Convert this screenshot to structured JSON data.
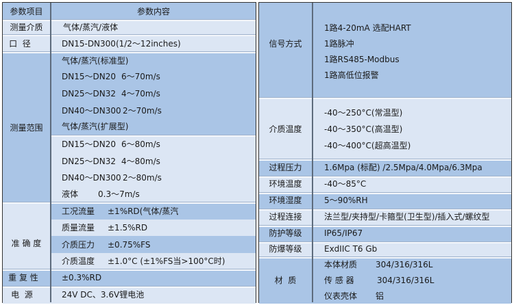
{
  "left_table": {
    "header": {
      "col1": "参数项目",
      "col2": "参数内容"
    },
    "medium": {
      "label": "测量介质",
      "value": "气体/蒸汽/液体"
    },
    "diameter": {
      "label": "口  径",
      "value": "DN15-DN300(1/2～12inches)"
    },
    "range": {
      "label": "测量范围",
      "standard_title": "气体/蒸汽(标准型)",
      "standard": [
        {
          "size": "DN15～DN20",
          "speed": "6～70m/s"
        },
        {
          "size": "DN25～DN32",
          "speed": "4～70m/s"
        },
        {
          "size": "DN40～DN300",
          "speed": "2～70m/s"
        }
      ],
      "extended_title": "气体/蒸汽(扩展型)",
      "extended": [
        {
          "size": "DN15～DN20",
          "speed": "6～80m/s"
        },
        {
          "size": "DN25～DN32",
          "speed": "4～80m/s"
        },
        {
          "size": "DN40～DN300",
          "speed": "2～80m/s"
        }
      ],
      "liquid": {
        "name": "液体",
        "speed": "0.3～7m/s"
      }
    },
    "accuracy": {
      "label": "准 确 度",
      "items": [
        {
          "name": "工况流量",
          "value": "±1%RD(气体/蒸汽"
        },
        {
          "name": "质量流量",
          "value": "±1.5%RD"
        },
        {
          "name": "介质压力",
          "value": "±0.75%FS"
        },
        {
          "name": "介质温度",
          "value": "±1.0°C (±1%FS当>100°C时)"
        }
      ]
    },
    "repeatability": {
      "label": "重 复 性",
      "value": "±0.3%RD"
    },
    "power": {
      "label": "电  源",
      "value": "24V DC、3.6V锂电池"
    }
  },
  "right_table": {
    "signal": {
      "label": "信号方式",
      "lines": [
        "1路4-20mA 选配HART",
        "1路脉冲",
        "1路RS485-Modbus",
        "1路高低位报警"
      ]
    },
    "medium_temp": {
      "label": "介质温度",
      "lines": [
        "-40～250°C(常温型)",
        "-40～350°C(高温型)",
        "-40～400°C(超高温型)"
      ]
    },
    "process_pressure": {
      "label": "过程压力",
      "value": "1.6Mpa (标配) /2.5Mpa/4.0Mpa/6.3Mpa"
    },
    "ambient_temp": {
      "label": "环境温度",
      "value": "-40～85°C"
    },
    "ambient_humidity": {
      "label": "环境湿度",
      "value": "5～90%RH"
    },
    "connection": {
      "label": "过程连接",
      "value": "法兰型/夹持型/卡箍型(卫生型)/插入式/螺纹型"
    },
    "protection": {
      "label": "防护等级",
      "value": "IP65/IP67"
    },
    "explosion": {
      "label": "防爆等级",
      "value": "ExdIIC T6 Gb"
    },
    "material": {
      "label": "材  质",
      "items": [
        {
          "name": "本体材质",
          "value": "304/316/316L"
        },
        {
          "name": "传 感 器",
          "value": "304/316/316L"
        },
        {
          "name": "仪表壳体",
          "value": "铝"
        }
      ]
    }
  },
  "colors": {
    "dark_row": "#aac5e6",
    "light_row": "#dce6f4",
    "border": "#333333"
  }
}
